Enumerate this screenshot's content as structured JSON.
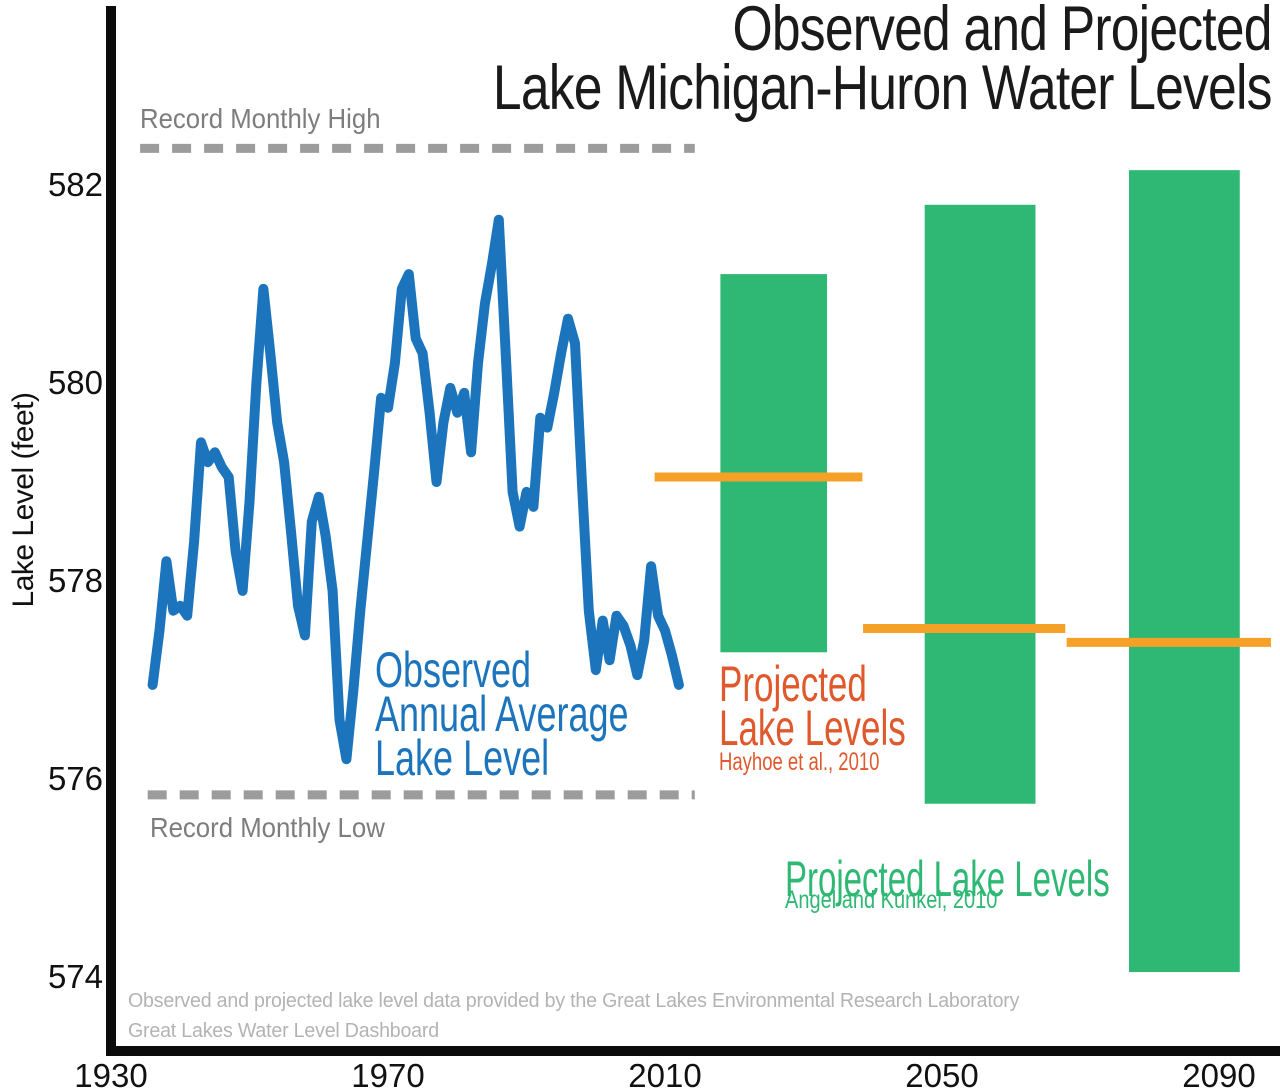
{
  "title": {
    "line1": "Observed and Projected",
    "line2": "Lake Michigan-Huron Water Levels"
  },
  "y_axis": {
    "label": "Lake Level (feet)",
    "ticks": [
      582,
      580,
      578,
      576,
      574
    ]
  },
  "x_axis": {
    "ticks": [
      1930,
      1970,
      2010,
      2050,
      2090
    ]
  },
  "annotations": {
    "record_high_label": "Record Monthly High",
    "record_low_label": "Record Monthly Low",
    "observed_label_line1": "Observed",
    "observed_label_line2": "Annual Average",
    "observed_label_line3": "Lake Level",
    "hayhoe_label_line1": "Projected",
    "hayhoe_label_line2": "Lake Levels",
    "hayhoe_source": "Hayhoe et al., 2010",
    "angel_label": "Projected Lake Levels",
    "angel_source": "Angel and Kunkel, 2010",
    "footer_line1": "Observed and projected lake level data provided by the Great Lakes Environmental Research Laboratory",
    "footer_line2": "Great Lakes Water Level Dashboard"
  },
  "colors": {
    "observed_blue": "#1c75bc",
    "projected_green": "#2eb873",
    "projected_orange": "#f5a127",
    "orange_text": "#e0592c",
    "record_gray": "#9c9c9c",
    "axis_black": "#0b0b0b",
    "tick_text": "#111111"
  },
  "chart_data": {
    "type": "composite",
    "title": "Observed and Projected Lake Michigan-Huron Water Levels",
    "xlabel": "",
    "ylabel": "Lake Level (feet)",
    "x_ticks": [
      1930,
      1970,
      2010,
      2050,
      2090
    ],
    "y_ticks": [
      582,
      580,
      578,
      576,
      574
    ],
    "x_range_years": [
      1930,
      2098.8
    ],
    "y_range_feet": [
      573.2,
      583.9
    ],
    "grid": false,
    "observed_series": {
      "name": "Observed Annual Average Lake Level",
      "style": "line",
      "start_year": 1936,
      "year_step": 1,
      "levels_feet": [
        576.95,
        577.5,
        578.2,
        577.7,
        577.75,
        577.65,
        578.4,
        579.4,
        579.2,
        579.3,
        579.15,
        579.05,
        578.3,
        577.9,
        578.8,
        580.0,
        580.95,
        580.3,
        579.6,
        579.2,
        578.5,
        577.75,
        577.45,
        578.6,
        578.85,
        578.45,
        577.9,
        576.6,
        576.2,
        576.9,
        577.7,
        578.4,
        579.1,
        579.85,
        579.75,
        580.2,
        580.95,
        581.1,
        580.45,
        580.3,
        579.7,
        579.0,
        579.6,
        579.95,
        579.7,
        579.9,
        579.3,
        580.2,
        580.8,
        581.2,
        581.65,
        580.3,
        578.9,
        578.55,
        578.9,
        578.75,
        579.65,
        579.55,
        579.9,
        580.3,
        580.65,
        580.4,
        579.0,
        577.7,
        577.1,
        577.6,
        577.2,
        577.65,
        577.55,
        577.35,
        577.05,
        577.4,
        578.15,
        577.65,
        577.5,
        577.25,
        576.95
      ]
    },
    "record_lines": [
      {
        "name": "Record Monthly High",
        "level_feet": 582.37,
        "year_start": 1934.2,
        "year_end": 2014.3
      },
      {
        "name": "Record Monthly Low",
        "level_feet": 575.84,
        "year_start": 1935.3,
        "year_end": 2014.3
      }
    ],
    "projected_ranges": {
      "name": "Projected Lake Levels",
      "source": "Angel and Kunkel, 2010",
      "style": "bar-range",
      "bars": [
        {
          "year_start": 2018.0,
          "year_end": 2033.4,
          "level_min": 577.28,
          "level_max": 581.1
        },
        {
          "year_start": 2047.5,
          "year_end": 2063.5,
          "level_min": 575.75,
          "level_max": 581.8
        },
        {
          "year_start": 2077.0,
          "year_end": 2093.0,
          "level_min": 574.05,
          "level_max": 582.15
        }
      ]
    },
    "projected_levels": {
      "name": "Projected Lake Levels",
      "source": "Hayhoe et al., 2010",
      "style": "horizontal-segment",
      "segments": [
        {
          "year_start": 2008.5,
          "year_end": 2038.5,
          "level_feet": 579.05
        },
        {
          "year_start": 2038.6,
          "year_end": 2067.8,
          "level_feet": 577.52
        },
        {
          "year_start": 2068.0,
          "year_end": 2097.5,
          "level_feet": 577.38
        }
      ]
    }
  }
}
